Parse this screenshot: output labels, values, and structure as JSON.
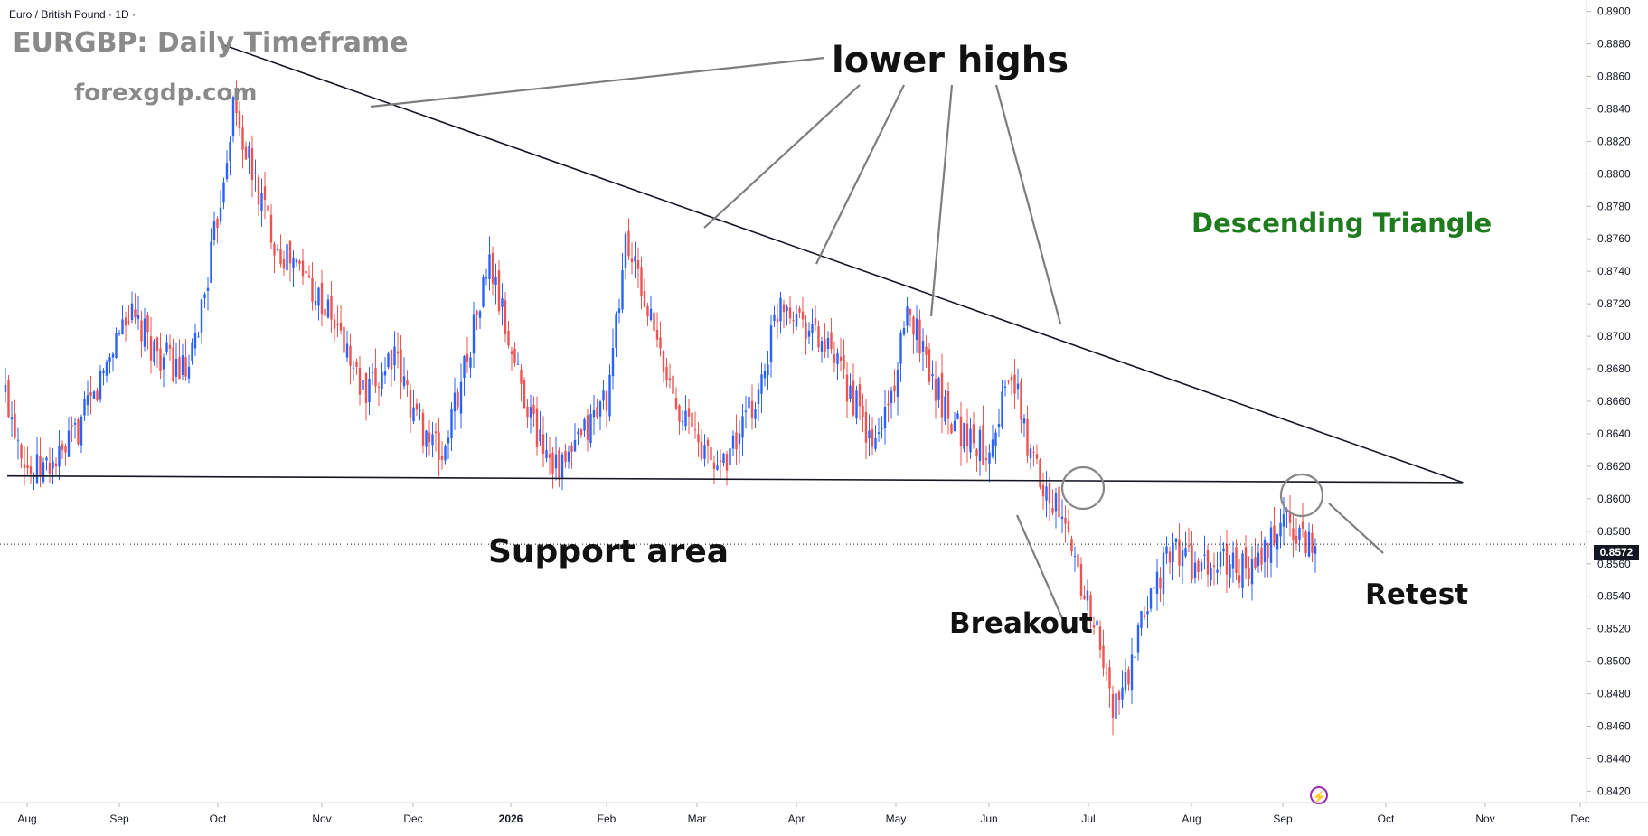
{
  "header": {
    "symbol_line": "Euro / British Pound · 1D ·"
  },
  "watermark": {
    "title": "EURGBP: Daily Timeframe",
    "site": "forexgdp.com"
  },
  "annotations": {
    "lower_highs": "lower highs",
    "pattern": "Descending Triangle",
    "support": "Support area",
    "breakout": "Breakout",
    "retest": "Retest"
  },
  "icons": {
    "flash": "lightning-bolt-icon"
  },
  "colors": {
    "up": "#2962ff",
    "down": "#ef5350",
    "pattern_label": "#1e7b1e",
    "price_tag": "#131722"
  },
  "chart_data": {
    "type": "candlestick",
    "title": "",
    "timeframe": "1D",
    "x_ticks": [
      "Aug",
      "Sep",
      "Oct",
      "Nov",
      "Dec",
      "2026",
      "Feb",
      "Mar",
      "Apr",
      "May",
      "Jun",
      "Jul",
      "Aug",
      "Sep",
      "Oct",
      "Nov",
      "Dec"
    ],
    "y_ticks": [
      "0.8900",
      "0.8880",
      "0.8860",
      "0.8840",
      "0.8820",
      "0.8800",
      "0.8780",
      "0.8760",
      "0.8740",
      "0.8720",
      "0.8700",
      "0.8680",
      "0.8660",
      "0.8640",
      "0.8620",
      "0.8600",
      "0.8580",
      "0.8560",
      "0.8540",
      "0.8520",
      "0.8500",
      "0.8480",
      "0.8460",
      "0.8440",
      "0.8420"
    ],
    "ylim": [
      0.8413,
      0.8907
    ],
    "last_price": "0.8572",
    "closes": [
      [
        0,
        0.8665
      ],
      [
        8,
        0.8615
      ],
      [
        18,
        0.8625
      ],
      [
        28,
        0.8662
      ],
      [
        38,
        0.8715
      ],
      [
        48,
        0.869
      ],
      [
        58,
        0.8675
      ],
      [
        66,
        0.876
      ],
      [
        72,
        0.8842
      ],
      [
        78,
        0.88
      ],
      [
        86,
        0.8755
      ],
      [
        96,
        0.8735
      ],
      [
        106,
        0.87
      ],
      [
        114,
        0.866
      ],
      [
        122,
        0.869
      ],
      [
        130,
        0.865
      ],
      [
        138,
        0.8625
      ],
      [
        146,
        0.869
      ],
      [
        153,
        0.8745
      ],
      [
        160,
        0.869
      ],
      [
        168,
        0.864
      ],
      [
        176,
        0.8618
      ],
      [
        183,
        0.864
      ],
      [
        191,
        0.8668
      ],
      [
        196,
        0.876
      ],
      [
        202,
        0.8722
      ],
      [
        208,
        0.868
      ],
      [
        216,
        0.8645
      ],
      [
        224,
        0.862
      ],
      [
        230,
        0.8632
      ],
      [
        238,
        0.8665
      ],
      [
        245,
        0.8725
      ],
      [
        252,
        0.8712
      ],
      [
        260,
        0.869
      ],
      [
        268,
        0.8662
      ],
      [
        274,
        0.863
      ],
      [
        280,
        0.8665
      ],
      [
        286,
        0.8718
      ],
      [
        290,
        0.8692
      ],
      [
        296,
        0.866
      ],
      [
        303,
        0.864
      ],
      [
        310,
        0.863
      ],
      [
        318,
        0.8678
      ],
      [
        324,
        0.8625
      ],
      [
        330,
        0.8605
      ],
      [
        336,
        0.8575
      ],
      [
        344,
        0.8525
      ],
      [
        350,
        0.847
      ],
      [
        356,
        0.8495
      ],
      [
        362,
        0.8545
      ],
      [
        370,
        0.857
      ],
      [
        378,
        0.8555
      ],
      [
        386,
        0.8562
      ],
      [
        394,
        0.8555
      ],
      [
        400,
        0.8572
      ],
      [
        404,
        0.859
      ],
      [
        410,
        0.8575
      ],
      [
        414,
        0.8572
      ]
    ],
    "overlays": {
      "resistance_line": {
        "from": [
          "2025-08-01",
          0.888
        ],
        "to": [
          "2026-10-25",
          0.861
        ]
      },
      "support_line": {
        "from": [
          "2025-08-01",
          0.8614
        ],
        "to": [
          "2026-10-25",
          0.861
        ]
      },
      "dotted_price_line": 0.8572
    }
  }
}
